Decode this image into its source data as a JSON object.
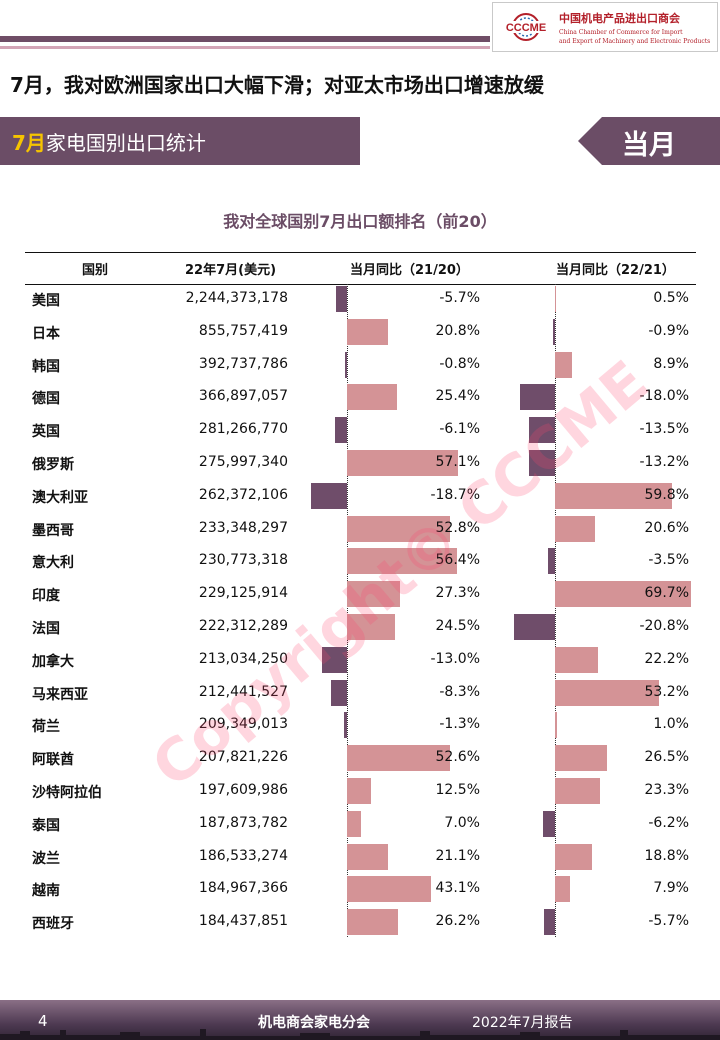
{
  "logo": {
    "mark_text": "CCCME",
    "name_cn": "中国机电产品进出口商会",
    "name_en_line1": "China Chamber of Commerce for Import",
    "name_en_line2": "and Export of Machinery and Electronic Products"
  },
  "headline": "7月，我对欧洲国家出口大幅下滑；对亚太市场出口增速放缓",
  "section": {
    "highlight": "7月",
    "rest": "家电国别出口统计",
    "tab": "当月"
  },
  "watermark": "Copyright© CCCME",
  "footer": {
    "page": "4",
    "center": "机电商会家电分会",
    "right": "2022年7月报告"
  },
  "colors": {
    "positive": "#d49396",
    "negative": "#6f4d6a",
    "theme": "#6b4d66"
  },
  "chart_data": {
    "type": "table",
    "title": "我对全球国别7月出口额排名（前20）",
    "columns": [
      "国别",
      "22年7月(美元)",
      "当月同比（21/20）",
      "当月同比（22/21）"
    ],
    "rows": [
      {
        "country": "美国",
        "value": "2,244,373,178",
        "yoy_21_20": -5.7,
        "yoy_22_21": 0.5
      },
      {
        "country": "日本",
        "value": "855,757,419",
        "yoy_21_20": 20.8,
        "yoy_22_21": -0.9
      },
      {
        "country": "韩国",
        "value": "392,737,786",
        "yoy_21_20": -0.8,
        "yoy_22_21": 8.9
      },
      {
        "country": "德国",
        "value": "366,897,057",
        "yoy_21_20": 25.4,
        "yoy_22_21": -18.0
      },
      {
        "country": "英国",
        "value": "281,266,770",
        "yoy_21_20": -6.1,
        "yoy_22_21": -13.5
      },
      {
        "country": "俄罗斯",
        "value": "275,997,340",
        "yoy_21_20": 57.1,
        "yoy_22_21": -13.2
      },
      {
        "country": "澳大利亚",
        "value": "262,372,106",
        "yoy_21_20": -18.7,
        "yoy_22_21": 59.8
      },
      {
        "country": "墨西哥",
        "value": "233,348,297",
        "yoy_21_20": 52.8,
        "yoy_22_21": 20.6
      },
      {
        "country": "意大利",
        "value": "230,773,318",
        "yoy_21_20": 56.4,
        "yoy_22_21": -3.5
      },
      {
        "country": "印度",
        "value": "229,125,914",
        "yoy_21_20": 27.3,
        "yoy_22_21": 69.7
      },
      {
        "country": "法国",
        "value": "222,312,289",
        "yoy_21_20": 24.5,
        "yoy_22_21": -20.8
      },
      {
        "country": "加拿大",
        "value": "213,034,250",
        "yoy_21_20": -13.0,
        "yoy_22_21": 22.2
      },
      {
        "country": "马来西亚",
        "value": "212,441,527",
        "yoy_21_20": -8.3,
        "yoy_22_21": 53.2
      },
      {
        "country": "荷兰",
        "value": "209,349,013",
        "yoy_21_20": -1.3,
        "yoy_22_21": 1.0
      },
      {
        "country": "阿联酋",
        "value": "207,821,226",
        "yoy_21_20": 52.6,
        "yoy_22_21": 26.5
      },
      {
        "country": "沙特阿拉伯",
        "value": "197,609,986",
        "yoy_21_20": 12.5,
        "yoy_22_21": 23.3
      },
      {
        "country": "泰国",
        "value": "187,873,782",
        "yoy_21_20": 7.0,
        "yoy_22_21": -6.2
      },
      {
        "country": "波兰",
        "value": "186,533,274",
        "yoy_21_20": 21.1,
        "yoy_22_21": 18.8
      },
      {
        "country": "越南",
        "value": "184,967,366",
        "yoy_21_20": 43.1,
        "yoy_22_21": 7.9
      },
      {
        "country": "西班牙",
        "value": "184,437,851",
        "yoy_21_20": 26.2,
        "yoy_22_21": -5.7
      }
    ]
  }
}
